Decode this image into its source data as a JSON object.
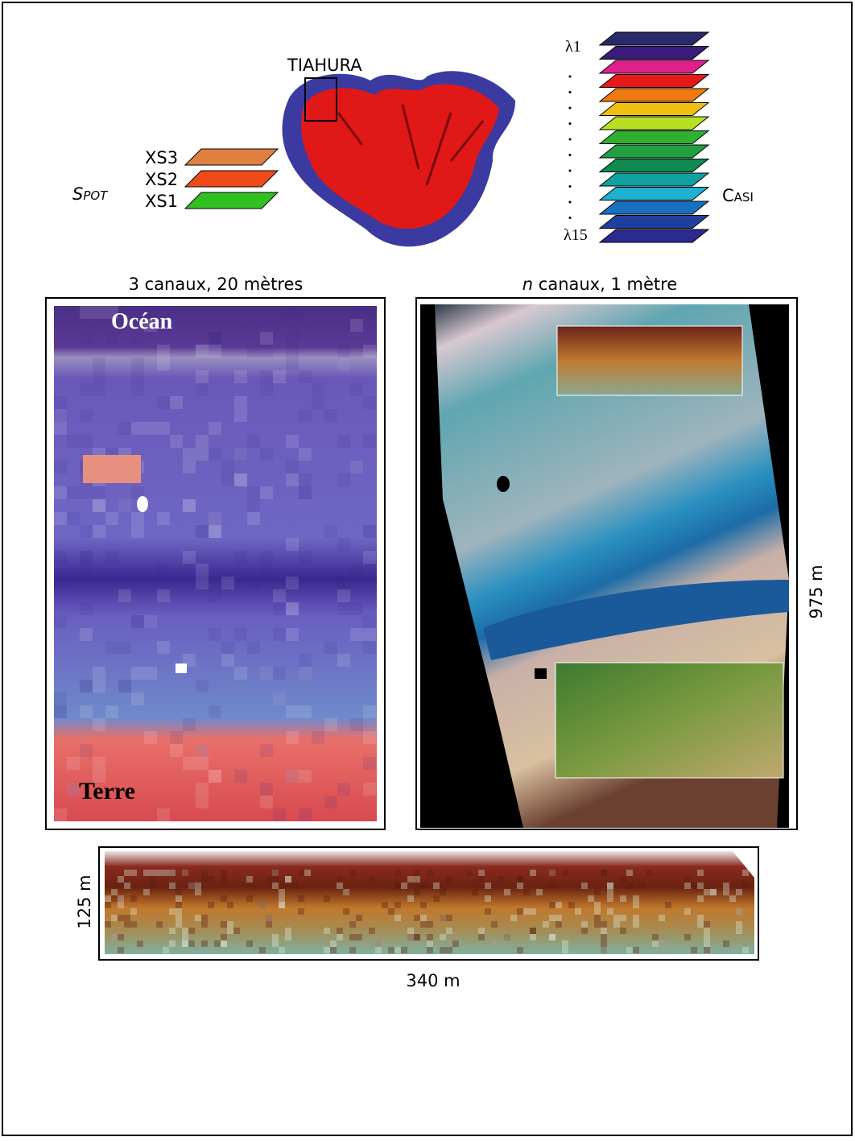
{
  "island": {
    "label": "TIAHURA"
  },
  "spot": {
    "name": "Spot",
    "bands": [
      "XS3",
      "XS2",
      "XS1"
    ]
  },
  "casi": {
    "name": "Casi",
    "first": "λ1",
    "last": "λ15"
  },
  "left_panel": {
    "caption": "3 canaux, 20 mètres",
    "top_label": "Océan",
    "bottom_label": "Terre"
  },
  "right_panel": {
    "caption_variable": "n",
    "caption": "canaux, 1 mètre",
    "height_label": "975 m"
  },
  "bottom_panel": {
    "height_label": "125 m",
    "width_label": "340 m"
  }
}
